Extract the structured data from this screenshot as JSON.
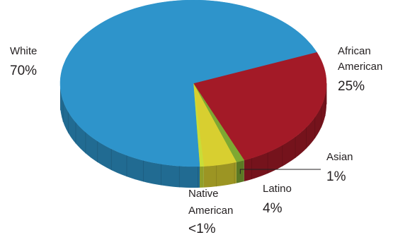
{
  "chart_data": {
    "type": "pie",
    "style": "3d",
    "legend": "none",
    "slices": [
      {
        "label": "African American",
        "display_value": "25%",
        "value": 25,
        "color": "#a31a27"
      },
      {
        "label": "Asian",
        "display_value": "1%",
        "value": 1,
        "color": "#7ea832"
      },
      {
        "label": "Latino",
        "display_value": "4%",
        "value": 4,
        "color": "#d8cf30"
      },
      {
        "label": "Native American",
        "display_value": "<1%",
        "value": 0.5,
        "color": "#c9dd38"
      },
      {
        "label": "White",
        "display_value": "70%",
        "value": 70,
        "color": "#2e94cb"
      }
    ]
  }
}
